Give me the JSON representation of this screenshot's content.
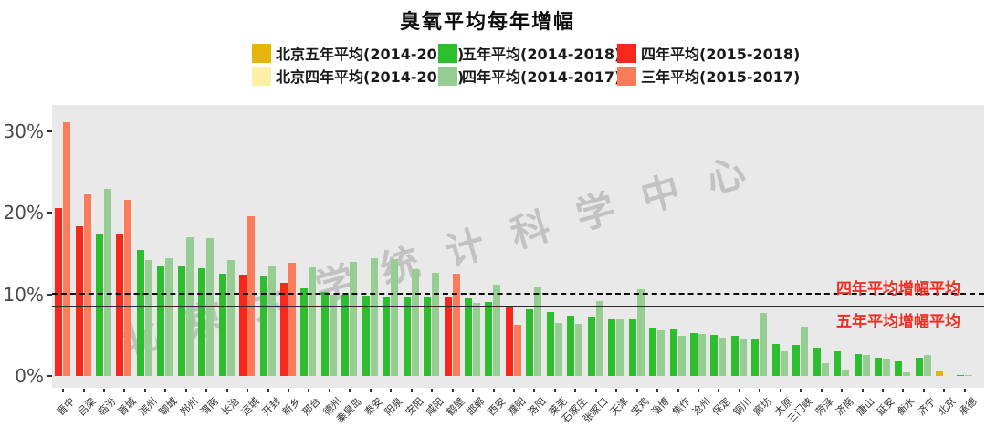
{
  "watermark": "北京大学统计科学中心",
  "palette": {
    "gold": {
      "dark": "#E6B50C",
      "light": "#FCEFA6"
    },
    "green": {
      "dark": "#2CBE2C",
      "light": "#95CD93"
    },
    "red": {
      "dark": "#F8271C",
      "light": "#FB7B5B"
    }
  },
  "plot": {
    "background": "#E9E9E9",
    "axis_text_color": "#4a4a4a",
    "ref_label_color": "#ee3024"
  },
  "ref_lines": [
    {
      "style": "dashed",
      "value": 10.2,
      "label": "四年平均增幅平均"
    },
    {
      "style": "solid",
      "value": 8.6,
      "label": "五年平均增幅平均"
    }
  ],
  "y_axis": {
    "tick_values": [
      0,
      10,
      20,
      30
    ],
    "tick_labels": [
      "0%",
      "10%",
      "20%",
      "30%"
    ]
  },
  "chart_data": {
    "type": "bar",
    "title": "臭氧平均每年增幅",
    "ylabel": "",
    "xlabel": "",
    "ylim": [
      0,
      33
    ],
    "grid": false,
    "legend_position": "top",
    "legend": {
      "rows": [
        [
          {
            "label": "北京五年平均(2014-2018)",
            "group": "gold",
            "shade": "dark"
          },
          {
            "label": "五年平均(2014-2018)",
            "group": "green",
            "shade": "dark"
          },
          {
            "label": "四年平均(2015-2018)",
            "group": "red",
            "shade": "dark"
          }
        ],
        [
          {
            "label": "北京四年平均(2014-2017)",
            "group": "gold",
            "shade": "light"
          },
          {
            "label": "四年平均(2014-2017)",
            "group": "green",
            "shade": "light"
          },
          {
            "label": "三年平均(2015-2017)",
            "group": "red",
            "shade": "light"
          }
        ]
      ]
    },
    "series_note": "Each city shows two bars: dark = long-period average annual increase, light = shorter-period average annual increase; values in percent.",
    "points": [
      {
        "name": "晋中",
        "group": "red",
        "dark": 20.6,
        "light": 31.1
      },
      {
        "name": "吕梁",
        "group": "red",
        "dark": 18.4,
        "light": 22.3
      },
      {
        "name": "临汾",
        "group": "green",
        "dark": 17.5,
        "light": 23.0
      },
      {
        "name": "晋城",
        "group": "red",
        "dark": 17.4,
        "light": 21.6
      },
      {
        "name": "滨州",
        "group": "green",
        "dark": 15.5,
        "light": 14.2
      },
      {
        "name": "聊城",
        "group": "green",
        "dark": 13.6,
        "light": 14.5
      },
      {
        "name": "郑州",
        "group": "green",
        "dark": 13.4,
        "light": 17.0
      },
      {
        "name": "渭南",
        "group": "green",
        "dark": 13.2,
        "light": 16.9
      },
      {
        "name": "长治",
        "group": "green",
        "dark": 12.6,
        "light": 14.2
      },
      {
        "name": "运城",
        "group": "red",
        "dark": 12.4,
        "light": 19.6
      },
      {
        "name": "开封",
        "group": "green",
        "dark": 12.2,
        "light": 13.6
      },
      {
        "name": "新乡",
        "group": "red",
        "dark": 11.4,
        "light": 13.9
      },
      {
        "name": "邢台",
        "group": "green",
        "dark": 10.7,
        "light": 13.3
      },
      {
        "name": "德州",
        "group": "green",
        "dark": 10.3,
        "light": 10.0
      },
      {
        "name": "秦皇岛",
        "group": "green",
        "dark": 10.0,
        "light": 14.0
      },
      {
        "name": "泰安",
        "group": "green",
        "dark": 9.9,
        "light": 14.4
      },
      {
        "name": "阳泉",
        "group": "green",
        "dark": 9.8,
        "light": 14.3
      },
      {
        "name": "安阳",
        "group": "green",
        "dark": 9.7,
        "light": 13.1
      },
      {
        "name": "咸阳",
        "group": "green",
        "dark": 9.6,
        "light": 12.7
      },
      {
        "name": "鹤壁",
        "group": "red",
        "dark": 9.6,
        "light": 12.5
      },
      {
        "name": "邯郸",
        "group": "green",
        "dark": 9.5,
        "light": 9.0
      },
      {
        "name": "西安",
        "group": "green",
        "dark": 9.1,
        "light": 11.2
      },
      {
        "name": "濮阳",
        "group": "red",
        "dark": 8.5,
        "light": 6.3
      },
      {
        "name": "洛阳",
        "group": "green",
        "dark": 8.2,
        "light": 10.9
      },
      {
        "name": "莱芜",
        "group": "green",
        "dark": 7.9,
        "light": 6.5
      },
      {
        "name": "石家庄",
        "group": "green",
        "dark": 7.4,
        "light": 6.4
      },
      {
        "name": "张家口",
        "group": "green",
        "dark": 7.3,
        "light": 9.2
      },
      {
        "name": "天津",
        "group": "green",
        "dark": 7.0,
        "light": 7.0
      },
      {
        "name": "宝鸡",
        "group": "green",
        "dark": 6.9,
        "light": 10.6
      },
      {
        "name": "淄博",
        "group": "green",
        "dark": 5.8,
        "light": 5.6
      },
      {
        "name": "焦作",
        "group": "green",
        "dark": 5.7,
        "light": 4.9
      },
      {
        "name": "沧州",
        "group": "green",
        "dark": 5.3,
        "light": 5.2
      },
      {
        "name": "保定",
        "group": "green",
        "dark": 5.0,
        "light": 4.7
      },
      {
        "name": "铜川",
        "group": "green",
        "dark": 4.9,
        "light": 4.6
      },
      {
        "name": "廊坊",
        "group": "green",
        "dark": 4.5,
        "light": 7.7
      },
      {
        "name": "太原",
        "group": "green",
        "dark": 3.9,
        "light": 3.0
      },
      {
        "name": "三门峡",
        "group": "green",
        "dark": 3.8,
        "light": 6.0
      },
      {
        "name": "菏泽",
        "group": "green",
        "dark": 3.5,
        "light": 1.6
      },
      {
        "name": "济南",
        "group": "green",
        "dark": 3.0,
        "light": 0.8
      },
      {
        "name": "唐山",
        "group": "green",
        "dark": 2.7,
        "light": 2.6
      },
      {
        "name": "延安",
        "group": "green",
        "dark": 2.3,
        "light": 2.1
      },
      {
        "name": "衡水",
        "group": "green",
        "dark": 1.8,
        "light": 0.5
      },
      {
        "name": "济宁",
        "group": "green",
        "dark": 2.2,
        "light": 2.6
      },
      {
        "name": "北京",
        "group": "gold",
        "dark": 0.55,
        "light": 0.2
      },
      {
        "name": "承德",
        "group": "green",
        "dark": 0.1,
        "light": 0.05
      }
    ]
  }
}
